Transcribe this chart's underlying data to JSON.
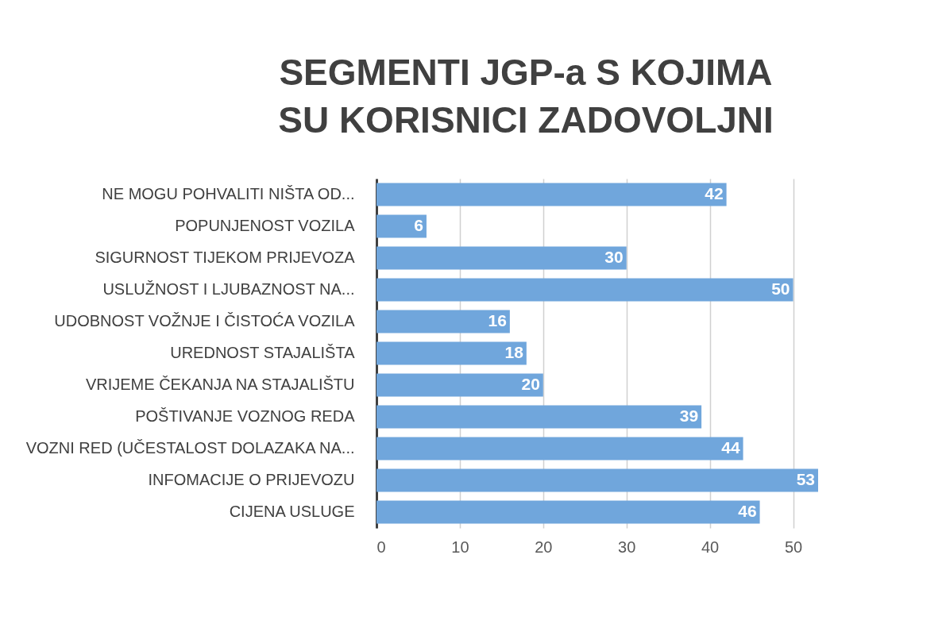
{
  "chart_data": {
    "type": "bar",
    "orientation": "horizontal",
    "title": "SEGMENTI JGP-a  S KOJIMA SU KORISNICI ZADOVOLJNI",
    "categories": [
      "NE MOGU POHVALITI NIŠTA OD...",
      "POPUNJENOST VOZILA",
      "SIGURNOST TIJEKOM PRIJEVOZA",
      "USLUŽNOST I LJUBAZNOST NA...",
      "UDOBNOST VOŽNJE I ČISTOĆA VOZILA",
      "UREDNOST STAJALIŠTA",
      "VRIJEME ČEKANJA NA STAJALIŠTU",
      "POŠTIVANJE VOZNOG REDA",
      "VOZNI RED (UČESTALOST DOLAZAKA NA...",
      "INFOMACIJE O PRIJEVOZU",
      "CIJENA USLUGE"
    ],
    "values": [
      42,
      6,
      30,
      50,
      16,
      18,
      20,
      39,
      44,
      53,
      46
    ],
    "color": "#70a6dc",
    "xlim": [
      0,
      53
    ],
    "xticks": [
      0,
      10,
      20,
      30,
      40,
      50
    ],
    "grid": "x",
    "data_labels": true
  }
}
